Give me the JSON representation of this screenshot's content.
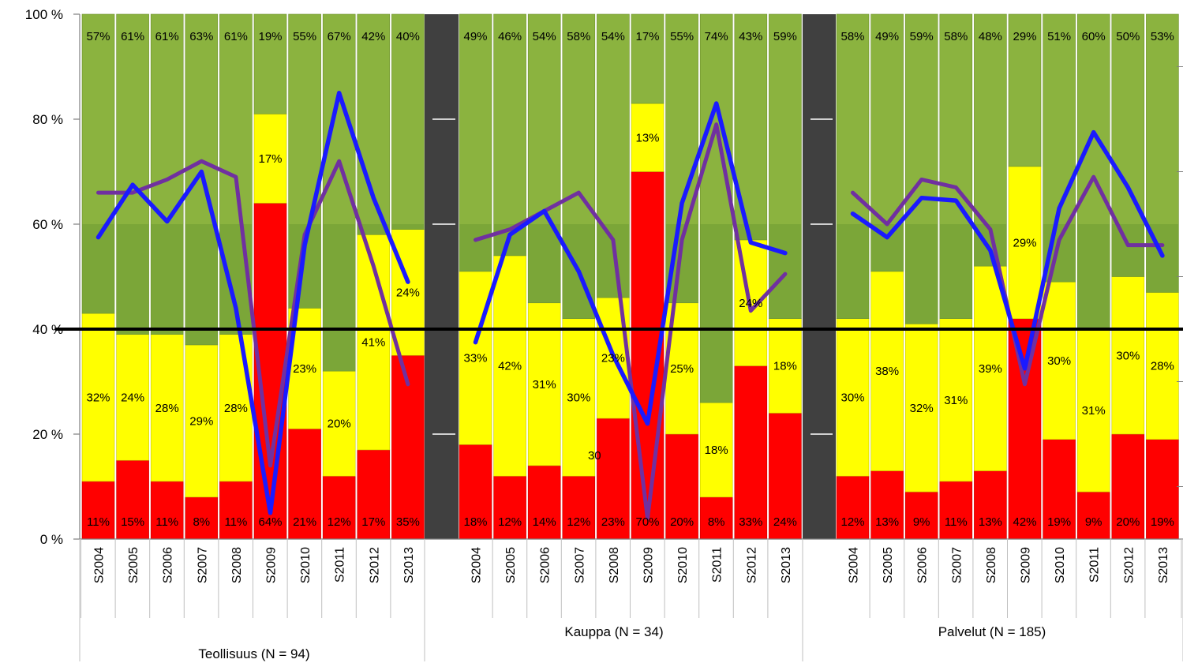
{
  "chart_data": {
    "type": "bar",
    "stacked": true,
    "ylim": [
      0,
      100
    ],
    "y_ticks": [
      "0 %",
      "20 %",
      "40 %",
      "60 %",
      "80 %",
      "100 %"
    ],
    "reference_line": 40,
    "categories": [
      "S2004",
      "S2005",
      "S2006",
      "S2007",
      "S2008",
      "S2009",
      "S2010",
      "S2011",
      "S2012",
      "S2013"
    ],
    "colors": {
      "red": "#ff0000",
      "yellow": "#ffff00",
      "green": "#8bb33f",
      "blue_line": "#1a1aff",
      "purple_line": "#7030a0",
      "separator": "#404040",
      "reference": "#000000"
    },
    "groups": [
      {
        "label": "Teollisuus (N = 94)",
        "red": [
          11,
          15,
          11,
          8,
          11,
          64,
          21,
          12,
          17,
          35
        ],
        "yellow": [
          32,
          24,
          28,
          29,
          28,
          17,
          23,
          20,
          41,
          24
        ],
        "green": [
          57,
          61,
          61,
          63,
          61,
          19,
          55,
          67,
          42,
          40
        ],
        "red_labels": [
          "11%",
          "15%",
          "11%",
          "8%",
          "11%",
          "64%",
          "21%",
          "12%",
          "17%",
          "35%"
        ],
        "yellow_labels": [
          "32%",
          "24%",
          "28%",
          "29%",
          "28%",
          "17%",
          "23%",
          "20%",
          "41%",
          "24%"
        ],
        "green_labels": [
          "57%",
          "61%",
          "61%",
          "63%",
          "61%",
          "19%",
          "55%",
          "67%",
          "42%",
          "40%"
        ],
        "blue_line": [
          57.5,
          67.5,
          60.5,
          70,
          44,
          5,
          56,
          85,
          65,
          49
        ],
        "purple_line": [
          66,
          66,
          68.5,
          72,
          69,
          14,
          58,
          72,
          52,
          29.5
        ]
      },
      {
        "label": "Kauppa (N = 34)",
        "red": [
          18,
          12,
          14,
          12,
          23,
          70,
          20,
          8,
          33,
          24
        ],
        "yellow": [
          33,
          42,
          31,
          30,
          23,
          13,
          25,
          18,
          24,
          18
        ],
        "green": [
          49,
          46,
          54,
          58,
          54,
          17,
          55,
          74,
          43,
          59
        ],
        "red_labels": [
          "18%",
          "12%",
          "14%",
          "12%",
          "23%",
          "70%",
          "20%",
          "8%",
          "33%",
          "24%"
        ],
        "yellow_labels": [
          "33%",
          "42%",
          "31%",
          "30%",
          "23%",
          "13%",
          "25%",
          "18%",
          "24%",
          "18%"
        ],
        "green_labels": [
          "49%",
          "46%",
          "54%",
          "58%",
          "54%",
          "17%",
          "55%",
          "74%",
          "43%",
          "59%"
        ],
        "blue_line": [
          37.5,
          58,
          62.5,
          51,
          35,
          22,
          64,
          83,
          56.5,
          54.5
        ],
        "purple_line": [
          57,
          59,
          62.5,
          66,
          57,
          4,
          57,
          79,
          43.5,
          50.5
        ]
      },
      {
        "label": "Palvelut (N = 185)",
        "red": [
          12,
          13,
          9,
          11,
          13,
          42,
          19,
          9,
          20,
          19
        ],
        "yellow": [
          30,
          38,
          32,
          31,
          39,
          29,
          30,
          31,
          30,
          28
        ],
        "green": [
          58,
          49,
          59,
          58,
          48,
          29,
          51,
          60,
          50,
          53
        ],
        "red_labels": [
          "12%",
          "13%",
          "9%",
          "11%",
          "13%",
          "42%",
          "19%",
          "9%",
          "20%",
          "19%"
        ],
        "yellow_labels": [
          "30%",
          "38%",
          "32%",
          "31%",
          "39%",
          "29%",
          "30%",
          "31%",
          "30%",
          "28%"
        ],
        "green_labels": [
          "58%",
          "49%",
          "59%",
          "58%",
          "48%",
          "29%",
          "51%",
          "60%",
          "50%",
          "53%"
        ],
        "blue_line": [
          62,
          57.5,
          65,
          64.5,
          55,
          32.5,
          63,
          77.5,
          67,
          54
        ],
        "purple_line": [
          66,
          60,
          68.5,
          67,
          59,
          29.5,
          57,
          69,
          56,
          56
        ]
      }
    ],
    "annotations": [
      {
        "text": "30",
        "group": 1,
        "category": 3
      }
    ]
  }
}
